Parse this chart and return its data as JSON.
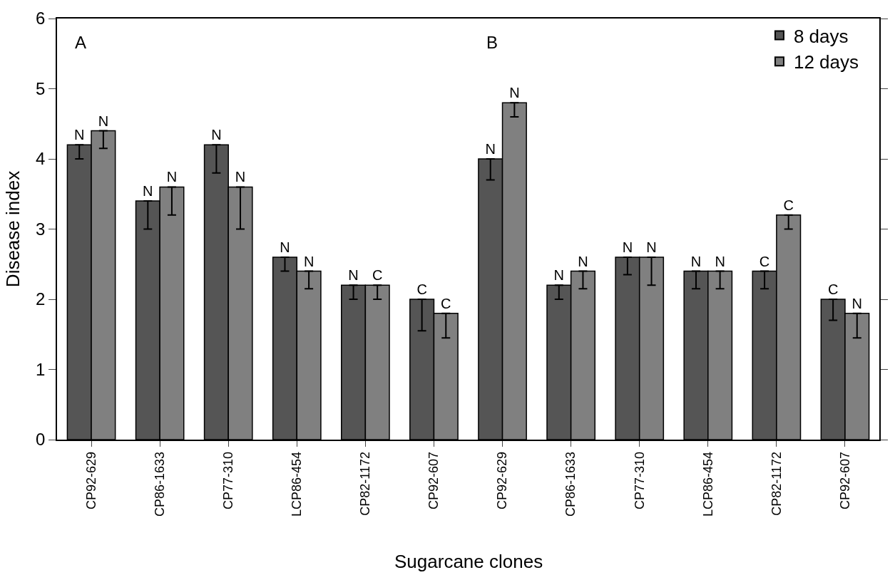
{
  "chart_data": [
    {
      "type": "bar",
      "annotations": [
        "A"
      ],
      "xlabel": "Sugarcane clones",
      "ylabel": "Disease index",
      "categories": [
        "CP92-629",
        "CP86-1633",
        "CP77-310",
        "LCP86-454",
        "CP82-1172",
        "CP92-607"
      ],
      "ylim": [
        0,
        6
      ],
      "yticks": [
        0,
        1,
        2,
        3,
        4,
        5,
        6
      ],
      "series": [
        {
          "color": "#555555",
          "values": [
            4.2,
            3.4,
            4.2,
            2.6,
            2.2,
            2.0
          ],
          "errors": [
            [
              4.0,
              4.2
            ],
            [
              3.0,
              3.4
            ],
            [
              3.8,
              4.2
            ],
            [
              2.4,
              2.6
            ],
            [
              2.0,
              2.2
            ],
            [
              1.55,
              2.0
            ]
          ],
          "value_labels": [
            "N",
            "N",
            "N",
            "N",
            "N",
            "C"
          ]
        },
        {
          "color": "#808080",
          "values": [
            4.4,
            3.6,
            3.6,
            2.4,
            2.2,
            1.8
          ],
          "errors": [
            [
              4.15,
              4.4
            ],
            [
              3.2,
              3.6
            ],
            [
              3.0,
              3.6
            ],
            [
              2.15,
              2.4
            ],
            [
              2.0,
              2.2
            ],
            [
              1.45,
              1.8
            ]
          ],
          "value_labels": [
            "N",
            "N",
            "N",
            "N",
            "C",
            "C"
          ]
        }
      ]
    },
    {
      "type": "bar",
      "annotations": [
        "B"
      ],
      "tick_labels": "x",
      "categories": [
        "CP92-629",
        "CP86-1633",
        "CP77-310",
        "LCP86-454",
        "CP82-1172",
        "CP92-607"
      ],
      "ylim": [
        0,
        6
      ],
      "yticks": [
        0,
        1,
        2,
        3,
        4,
        5,
        6
      ],
      "legend": "top right",
      "series": [
        {
          "name": "8 days",
          "color": "#555555",
          "values": [
            4.0,
            2.2,
            2.6,
            2.4,
            2.4,
            2.0
          ],
          "errors": [
            [
              3.7,
              4.0
            ],
            [
              2.0,
              2.2
            ],
            [
              2.35,
              2.6
            ],
            [
              2.15,
              2.4
            ],
            [
              2.15,
              2.4
            ],
            [
              1.7,
              2.0
            ]
          ],
          "value_labels": [
            "N",
            "N",
            "N",
            "N",
            "C",
            "C"
          ]
        },
        {
          "name": "12 days",
          "color": "#808080",
          "values": [
            4.8,
            2.4,
            2.6,
            2.4,
            3.2,
            1.8
          ],
          "errors": [
            [
              4.6,
              4.8
            ],
            [
              2.15,
              2.4
            ],
            [
              2.2,
              2.6
            ],
            [
              2.15,
              2.4
            ],
            [
              3.0,
              3.2
            ],
            [
              1.45,
              1.8
            ]
          ],
          "value_labels": [
            "N",
            "N",
            "N",
            "N",
            "C",
            "N"
          ]
        }
      ]
    }
  ]
}
